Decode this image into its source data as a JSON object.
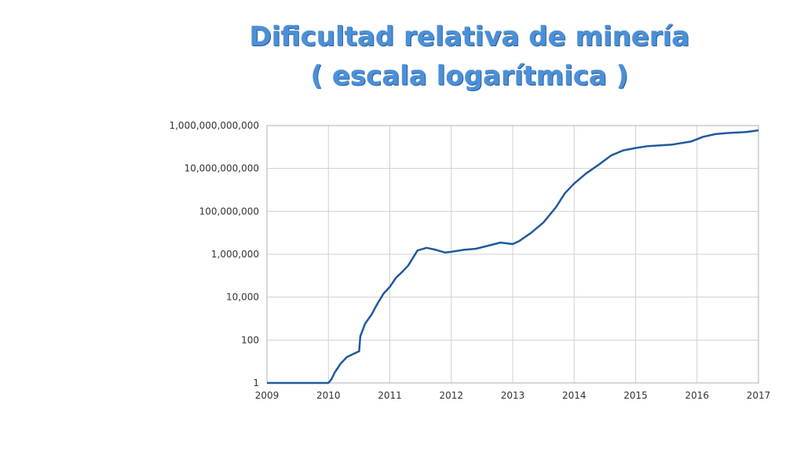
{
  "slide": {
    "title_line1": "Dificultad relativa de minería",
    "title_line2": "( escala logarítmica )"
  },
  "colors": {
    "title": "#4a90d9",
    "series": "#1f5a9c",
    "grid": "#d0d0d0"
  },
  "chart_data": {
    "type": "line",
    "title": "Dificultad relativa de minería ( escala logarítmica )",
    "xlabel": "",
    "ylabel": "",
    "yscale": "log",
    "xlim": [
      2009,
      2017
    ],
    "ylim": [
      1,
      1000000000000
    ],
    "grid": true,
    "legend": "none",
    "x_ticks": [
      "2009",
      "2010",
      "2011",
      "2012",
      "2013",
      "2014",
      "2015",
      "2016",
      "2017"
    ],
    "y_ticks": [
      "1",
      "100",
      "10,000",
      "1,000,000",
      "100,000,000",
      "10,000,000,000",
      "1,000,000,000,000"
    ],
    "series": [
      {
        "name": "",
        "x": [
          2009.0,
          2009.9,
          2010.0,
          2010.05,
          2010.1,
          2010.2,
          2010.3,
          2010.4,
          2010.5,
          2010.52,
          2010.6,
          2010.7,
          2010.8,
          2010.9,
          2011.0,
          2011.1,
          2011.2,
          2011.3,
          2011.45,
          2011.6,
          2011.75,
          2011.9,
          2012.0,
          2012.2,
          2012.4,
          2012.6,
          2012.8,
          2013.0,
          2013.1,
          2013.3,
          2013.5,
          2013.7,
          2013.85,
          2014.0,
          2014.2,
          2014.4,
          2014.6,
          2014.8,
          2015.0,
          2015.2,
          2015.4,
          2015.6,
          2015.9,
          2016.1,
          2016.3,
          2016.5,
          2016.8,
          2017.0
        ],
        "y": [
          1,
          1,
          1,
          1.5,
          3,
          8,
          16,
          22,
          30,
          150,
          600,
          1500,
          5000,
          15000,
          30000,
          80000,
          150000,
          300000,
          1500000,
          2000000,
          1600000,
          1200000,
          1300000,
          1600000,
          1800000,
          2500000,
          3500000,
          3000000,
          4000000,
          10000000,
          30000000,
          150000000,
          700000000,
          2000000000,
          6000000000,
          15000000000,
          40000000000,
          70000000000,
          90000000000,
          110000000000,
          120000000000,
          130000000000,
          180000000000,
          300000000000,
          400000000000,
          450000000000,
          500000000000,
          600000000000
        ]
      }
    ]
  }
}
